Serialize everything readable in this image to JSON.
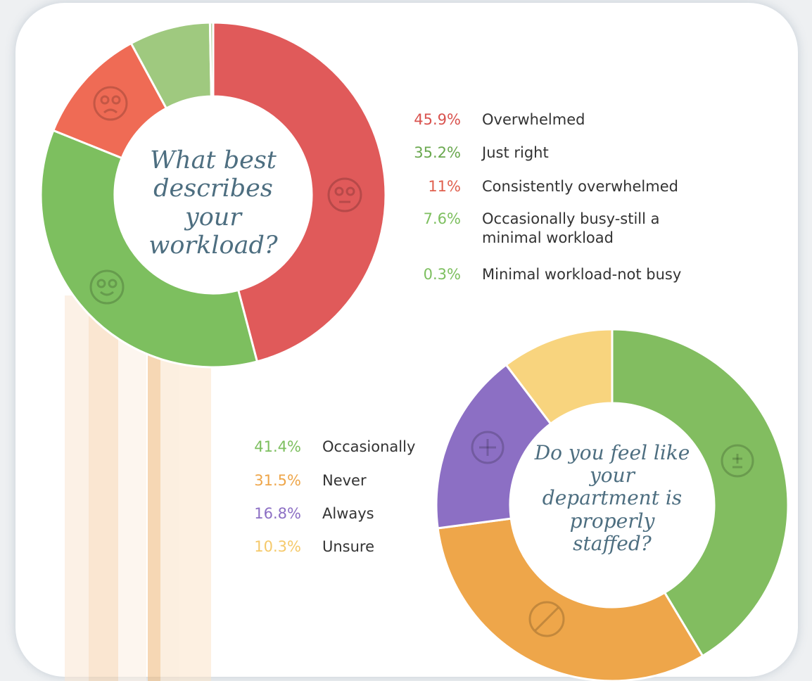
{
  "chart_data": [
    {
      "type": "donut",
      "title": "What best describes your workload?",
      "categories": [
        "Overwhelmed",
        "Just right",
        "Consistently overwhelmed",
        "Occasionally busy-still a minimal workload",
        "Minimal workload-not busy"
      ],
      "values": [
        45.9,
        35.2,
        11,
        7.6,
        0.3
      ],
      "value_labels": [
        "45.9%",
        "35.2%",
        "11%",
        "7.6%",
        "0.3%"
      ],
      "colors": [
        "#e05a5a",
        "#7dbf5f",
        "#ef6b55",
        "#9fc97f",
        "#b6d3a3"
      ],
      "label_colors": [
        "#d9534f",
        "#6aa84f",
        "#e0604f",
        "#7dbf5f",
        "#7dbf5f"
      ]
    },
    {
      "type": "donut",
      "title": "Do you feel like your department is properly staffed?",
      "categories": [
        "Occasionally",
        "Never",
        "Always",
        "Unsure"
      ],
      "values": [
        41.4,
        31.5,
        16.8,
        10.3
      ],
      "value_labels": [
        "41.4%",
        "31.5%",
        "16.8%",
        "10.3%"
      ],
      "colors": [
        "#82bd60",
        "#eea64a",
        "#8c6fc4",
        "#f8d47e"
      ],
      "label_colors": [
        "#7dbf5f",
        "#eea64a",
        "#8c6fc4",
        "#f5c96a"
      ]
    }
  ]
}
